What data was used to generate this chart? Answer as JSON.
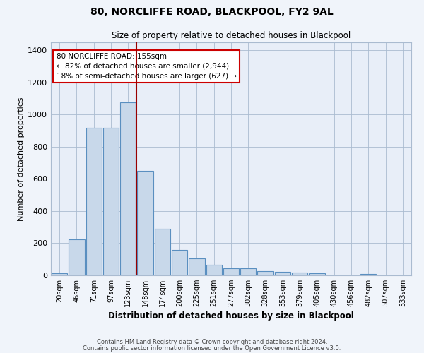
{
  "title1": "80, NORCLIFFE ROAD, BLACKPOOL, FY2 9AL",
  "title2": "Size of property relative to detached houses in Blackpool",
  "xlabel": "Distribution of detached houses by size in Blackpool",
  "ylabel": "Number of detached properties",
  "categories": [
    "20sqm",
    "46sqm",
    "71sqm",
    "97sqm",
    "123sqm",
    "148sqm",
    "174sqm",
    "200sqm",
    "225sqm",
    "251sqm",
    "277sqm",
    "302sqm",
    "328sqm",
    "353sqm",
    "379sqm",
    "405sqm",
    "430sqm",
    "456sqm",
    "482sqm",
    "507sqm",
    "533sqm"
  ],
  "values": [
    15,
    225,
    920,
    920,
    1075,
    650,
    290,
    160,
    105,
    68,
    45,
    45,
    25,
    20,
    18,
    12,
    0,
    0,
    10,
    0,
    0
  ],
  "bar_color": "#c8d8ea",
  "bar_edge_color": "#5a8fc0",
  "red_line_index": 5,
  "annotation_text": "80 NORCLIFFE ROAD: 155sqm\n← 82% of detached houses are smaller (2,944)\n18% of semi-detached houses are larger (627) →",
  "footer1": "Contains HM Land Registry data © Crown copyright and database right 2024.",
  "footer2": "Contains public sector information licensed under the Open Government Licence v3.0.",
  "ylim": [
    0,
    1450
  ],
  "yticks": [
    0,
    200,
    400,
    600,
    800,
    1000,
    1200,
    1400
  ],
  "fig_bg_color": "#f0f4fa",
  "plot_bg_color": "#e8eef8"
}
